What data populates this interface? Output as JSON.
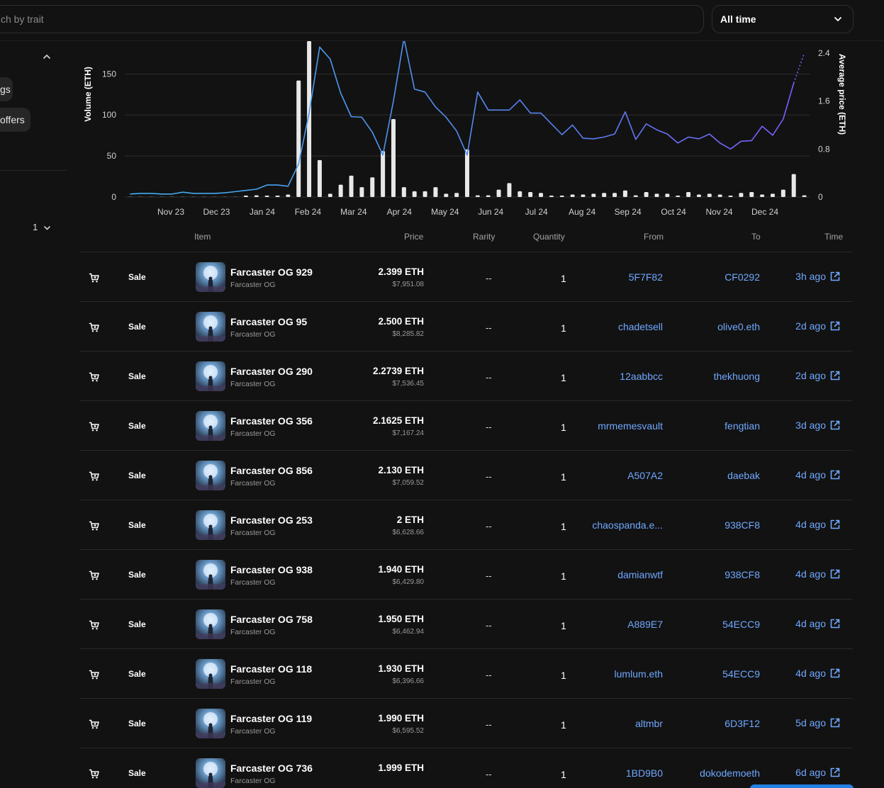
{
  "search": {
    "placeholder": "ch by trait"
  },
  "time_filter": {
    "selected": "All time"
  },
  "sidebar": {
    "chips": [
      {
        "label": "gs"
      },
      {
        "label": "offers"
      }
    ],
    "page_number": "1"
  },
  "chart_data": {
    "type": "bar",
    "ylabel": "Volume (ETH)",
    "y2label": "Average price (ETH)",
    "ylim": [
      0,
      190
    ],
    "y2lim": [
      0,
      2.6
    ],
    "yticks": [
      0,
      50,
      100,
      150
    ],
    "y2ticks": [
      "0",
      "0.8",
      "1.6",
      "2.4"
    ],
    "x_tick_labels": [
      "Nov 23",
      "Dec 23",
      "Jan 24",
      "Feb 24",
      "Mar 24",
      "Apr 24",
      "May 24",
      "Jun 24",
      "Jul 24",
      "Aug 24",
      "Sep 24",
      "Oct 24",
      "Nov 24",
      "Dec 24"
    ],
    "volume": [
      0,
      0,
      0,
      0,
      0,
      0,
      0,
      0,
      0,
      0,
      0,
      1,
      2,
      1,
      1,
      3,
      142,
      190,
      45,
      4,
      15,
      26,
      12,
      24,
      56,
      95,
      12,
      7,
      7,
      12,
      4,
      5,
      58,
      2,
      2,
      9,
      17,
      7,
      6,
      5,
      1,
      1,
      3,
      3,
      4,
      5,
      5,
      8,
      2,
      6,
      4,
      4,
      1,
      6,
      3,
      4,
      3,
      1,
      5,
      6,
      3,
      4,
      9,
      28,
      2
    ],
    "avg_price": [
      0.05,
      0.06,
      0.06,
      0.05,
      0.05,
      0.08,
      0.06,
      0.06,
      0.06,
      0.07,
      0.09,
      0.11,
      0.13,
      0.2,
      0.2,
      0.18,
      0.55,
      1.4,
      2.5,
      2.3,
      1.73,
      1.34,
      1.33,
      1.08,
      0.7,
      1.6,
      2.95,
      1.8,
      1.75,
      1.5,
      1.33,
      1.1,
      0.7,
      1.75,
      1.45,
      1.45,
      1.45,
      1.62,
      1.4,
      1.4,
      1.22,
      1.04,
      1.2,
      0.98,
      0.97,
      1.0,
      1.05,
      1.42,
      0.96,
      1.22,
      1.12,
      1.05,
      0.9,
      1.0,
      0.97,
      1.05,
      0.9,
      0.8,
      0.93,
      0.94,
      1.18,
      1.03,
      1.3,
      1.9,
      2.4
    ]
  },
  "table": {
    "headers": {
      "item": "Item",
      "price": "Price",
      "rarity": "Rarity",
      "quantity": "Quantity",
      "from": "From",
      "to": "To",
      "time": "Time"
    },
    "rows": [
      {
        "event": "Sale",
        "name": "Farcaster OG 929",
        "collection": "Farcaster OG",
        "price": "2.399 ETH",
        "usd": "$7,951.08",
        "rarity": "--",
        "qty": "1",
        "from": "5F7F82",
        "to": "CF0292",
        "time": "3h ago"
      },
      {
        "event": "Sale",
        "name": "Farcaster OG 95",
        "collection": "Farcaster OG",
        "price": "2.500 ETH",
        "usd": "$8,285.82",
        "rarity": "--",
        "qty": "1",
        "from": "chadetsell",
        "to": "olive0.eth",
        "time": "2d ago"
      },
      {
        "event": "Sale",
        "name": "Farcaster OG 290",
        "collection": "Farcaster OG",
        "price": "2.2739 ETH",
        "usd": "$7,536.45",
        "rarity": "--",
        "qty": "1",
        "from": "12aabbcc",
        "to": "thekhuong",
        "time": "2d ago"
      },
      {
        "event": "Sale",
        "name": "Farcaster OG 356",
        "collection": "Farcaster OG",
        "price": "2.1625 ETH",
        "usd": "$7,167.24",
        "rarity": "--",
        "qty": "1",
        "from": "mrmemesvault",
        "to": "fengtian",
        "time": "3d ago"
      },
      {
        "event": "Sale",
        "name": "Farcaster OG 856",
        "collection": "Farcaster OG",
        "price": "2.130 ETH",
        "usd": "$7,059.52",
        "rarity": "--",
        "qty": "1",
        "from": "A507A2",
        "to": "daebak",
        "time": "4d ago"
      },
      {
        "event": "Sale",
        "name": "Farcaster OG 253",
        "collection": "Farcaster OG",
        "price": "2 ETH",
        "usd": "$6,628.66",
        "rarity": "--",
        "qty": "1",
        "from": "chaospanda.e...",
        "to": "938CF8",
        "time": "4d ago"
      },
      {
        "event": "Sale",
        "name": "Farcaster OG 938",
        "collection": "Farcaster OG",
        "price": "1.940 ETH",
        "usd": "$6,429.80",
        "rarity": "--",
        "qty": "1",
        "from": "damianwtf",
        "to": "938CF8",
        "time": "4d ago"
      },
      {
        "event": "Sale",
        "name": "Farcaster OG 758",
        "collection": "Farcaster OG",
        "price": "1.950 ETH",
        "usd": "$6,462.94",
        "rarity": "--",
        "qty": "1",
        "from": "A889E7",
        "to": "54ECC9",
        "time": "4d ago"
      },
      {
        "event": "Sale",
        "name": "Farcaster OG 118",
        "collection": "Farcaster OG",
        "price": "1.930 ETH",
        "usd": "$6,396.66",
        "rarity": "--",
        "qty": "1",
        "from": "lumlum.eth",
        "to": "54ECC9",
        "time": "4d ago"
      },
      {
        "event": "Sale",
        "name": "Farcaster OG 119",
        "collection": "Farcaster OG",
        "price": "1.990 ETH",
        "usd": "$6,595.52",
        "rarity": "--",
        "qty": "1",
        "from": "altmbr",
        "to": "6D3F12",
        "time": "5d ago"
      },
      {
        "event": "Sale",
        "name": "Farcaster OG 736",
        "collection": "Farcaster OG",
        "price": "1.999 ETH",
        "usd": "",
        "rarity": "--",
        "qty": "1",
        "from": "1BD9B0",
        "to": "dokodemoeth",
        "time": "6d ago"
      }
    ]
  },
  "colors": {
    "accent_link": "#6fa8ff",
    "bar": "#e8e8e8",
    "line_start": "#3fb0f0",
    "line_end": "#7b5cff",
    "background": "#121212"
  },
  "icons": {
    "row_event": "cart-icon",
    "row_link": "external-link-icon",
    "filter_chevron": "chevron-down-icon",
    "sidebar_collapse": "chevron-up-icon"
  }
}
